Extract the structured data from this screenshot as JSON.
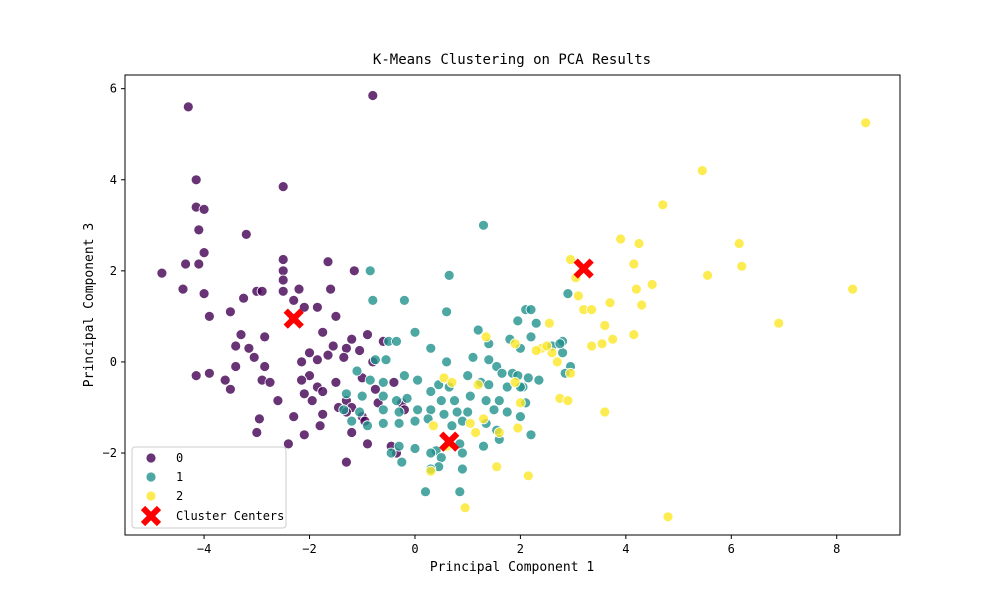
{
  "chart_data": {
    "type": "scatter",
    "title": "K-Means Clustering on PCA Results",
    "xlabel": "Principal Component 1",
    "ylabel": "Principal Component 3",
    "xlim": [
      -5.5,
      9.2
    ],
    "ylim": [
      -3.8,
      6.3
    ],
    "xticks": [
      -4,
      -2,
      0,
      2,
      4,
      6,
      8
    ],
    "yticks": [
      -2,
      0,
      2,
      4,
      6
    ],
    "grid": false,
    "legend_position": "lower-left",
    "series": [
      {
        "name": "0",
        "color": "#440154",
        "points": [
          [
            -4.3,
            5.6
          ],
          [
            -0.8,
            5.85
          ],
          [
            -4.15,
            4.0
          ],
          [
            -4.15,
            3.4
          ],
          [
            -4.0,
            3.35
          ],
          [
            -4.1,
            2.9
          ],
          [
            -3.2,
            2.8
          ],
          [
            -4.0,
            2.4
          ],
          [
            -4.35,
            2.15
          ],
          [
            -4.1,
            2.15
          ],
          [
            -4.8,
            1.95
          ],
          [
            -2.5,
            3.85
          ],
          [
            -2.5,
            2.25
          ],
          [
            -2.5,
            2.0
          ],
          [
            -1.65,
            2.2
          ],
          [
            -1.15,
            2.0
          ],
          [
            -2.5,
            1.8
          ],
          [
            -2.2,
            1.6
          ],
          [
            -1.6,
            1.6
          ],
          [
            -4.0,
            1.5
          ],
          [
            -4.4,
            1.6
          ],
          [
            -2.5,
            1.55
          ],
          [
            -3.0,
            1.55
          ],
          [
            -2.9,
            1.55
          ],
          [
            -3.25,
            1.4
          ],
          [
            -3.5,
            1.1
          ],
          [
            -2.3,
            1.35
          ],
          [
            -2.1,
            1.2
          ],
          [
            -1.85,
            1.2
          ],
          [
            -1.5,
            1.0
          ],
          [
            -3.9,
            1.0
          ],
          [
            -1.75,
            0.65
          ],
          [
            -1.2,
            0.5
          ],
          [
            -3.3,
            0.6
          ],
          [
            -2.85,
            0.55
          ],
          [
            -3.4,
            0.35
          ],
          [
            -3.15,
            0.3
          ],
          [
            -1.55,
            0.35
          ],
          [
            -1.3,
            0.3
          ],
          [
            -0.9,
            0.6
          ],
          [
            -0.6,
            0.45
          ],
          [
            -1.05,
            0.25
          ],
          [
            -2.0,
            0.2
          ],
          [
            -2.15,
            0.0
          ],
          [
            -1.85,
            0.05
          ],
          [
            -1.65,
            0.15
          ],
          [
            -1.35,
            0.1
          ],
          [
            -0.8,
            0.0
          ],
          [
            -3.4,
            -0.1
          ],
          [
            -3.9,
            -0.25
          ],
          [
            -4.15,
            -0.3
          ],
          [
            -2.85,
            -0.1
          ],
          [
            -3.05,
            0.1
          ],
          [
            -2.9,
            -0.4
          ],
          [
            -2.75,
            -0.45
          ],
          [
            -3.6,
            -0.4
          ],
          [
            -3.5,
            -0.6
          ],
          [
            -2.0,
            -0.3
          ],
          [
            -1.85,
            -0.55
          ],
          [
            -1.5,
            -0.45
          ],
          [
            -1.0,
            -0.35
          ],
          [
            -0.75,
            -0.6
          ],
          [
            -0.4,
            -0.45
          ],
          [
            -2.1,
            -0.7
          ],
          [
            -1.95,
            -0.85
          ],
          [
            -1.75,
            -0.65
          ],
          [
            -1.3,
            -0.85
          ],
          [
            -1.2,
            -1.0
          ],
          [
            -0.7,
            -0.9
          ],
          [
            -0.25,
            -0.9
          ],
          [
            -0.2,
            -1.05
          ],
          [
            -2.6,
            -0.85
          ],
          [
            -2.3,
            -1.2
          ],
          [
            -1.75,
            -1.15
          ],
          [
            -1.45,
            -1.0
          ],
          [
            -1.3,
            -1.1
          ],
          [
            -1.0,
            -1.2
          ],
          [
            -2.95,
            -1.25
          ],
          [
            -3.0,
            -1.55
          ],
          [
            -2.1,
            -1.6
          ],
          [
            -1.8,
            -1.4
          ],
          [
            -1.2,
            -1.55
          ],
          [
            -0.9,
            -1.8
          ],
          [
            -0.45,
            -1.85
          ],
          [
            -0.35,
            -2.0
          ],
          [
            -2.4,
            -1.8
          ],
          [
            -1.3,
            -2.2
          ],
          [
            -2.3,
            0.95
          ],
          [
            -0.95,
            -1.3
          ],
          [
            -2.15,
            -0.4
          ]
        ]
      },
      {
        "name": "1",
        "color": "#21918c",
        "points": [
          [
            1.3,
            3.0
          ],
          [
            -0.85,
            2.0
          ],
          [
            0.65,
            1.9
          ],
          [
            -0.8,
            1.35
          ],
          [
            -0.2,
            1.35
          ],
          [
            0.6,
            1.1
          ],
          [
            1.2,
            0.7
          ],
          [
            -0.5,
            0.45
          ],
          [
            -0.35,
            0.45
          ],
          [
            0.0,
            0.65
          ],
          [
            0.3,
            0.3
          ],
          [
            -0.75,
            0.05
          ],
          [
            -0.55,
            0.05
          ],
          [
            0.6,
            0.0
          ],
          [
            1.1,
            0.1
          ],
          [
            1.4,
            0.05
          ],
          [
            1.55,
            -0.1
          ],
          [
            -1.1,
            -0.2
          ],
          [
            -0.85,
            -0.4
          ],
          [
            -0.6,
            -0.45
          ],
          [
            -0.2,
            -0.3
          ],
          [
            0.05,
            -0.4
          ],
          [
            0.45,
            -0.5
          ],
          [
            0.65,
            -0.55
          ],
          [
            1.0,
            -0.3
          ],
          [
            1.25,
            -0.45
          ],
          [
            1.4,
            -0.5
          ],
          [
            1.65,
            -0.25
          ],
          [
            1.85,
            -0.25
          ],
          [
            2.05,
            -0.55
          ],
          [
            -1.3,
            -0.7
          ],
          [
            -1.0,
            -0.75
          ],
          [
            -0.6,
            -0.75
          ],
          [
            -0.35,
            -0.85
          ],
          [
            -0.15,
            -0.8
          ],
          [
            0.3,
            -0.65
          ],
          [
            0.5,
            -0.85
          ],
          [
            0.75,
            -0.85
          ],
          [
            1.05,
            -0.75
          ],
          [
            1.35,
            -0.85
          ],
          [
            1.6,
            -0.85
          ],
          [
            2.1,
            -0.9
          ],
          [
            -1.35,
            -1.05
          ],
          [
            -1.05,
            -1.1
          ],
          [
            -0.6,
            -1.05
          ],
          [
            -0.3,
            -1.1
          ],
          [
            0.05,
            -1.05
          ],
          [
            0.3,
            -1.05
          ],
          [
            0.55,
            -1.15
          ],
          [
            0.8,
            -1.1
          ],
          [
            1.0,
            -1.1
          ],
          [
            1.5,
            -1.05
          ],
          [
            1.75,
            -1.1
          ],
          [
            2.0,
            -1.2
          ],
          [
            -1.2,
            -1.3
          ],
          [
            -0.9,
            -1.4
          ],
          [
            -0.6,
            -1.35
          ],
          [
            -0.3,
            -1.35
          ],
          [
            0.0,
            -1.3
          ],
          [
            0.25,
            -1.25
          ],
          [
            0.7,
            -1.4
          ],
          [
            0.9,
            -1.3
          ],
          [
            1.35,
            -1.35
          ],
          [
            1.55,
            -1.5
          ],
          [
            2.2,
            -1.6
          ],
          [
            -0.3,
            -1.85
          ],
          [
            0.0,
            -1.9
          ],
          [
            0.4,
            -1.95
          ],
          [
            0.85,
            -1.8
          ],
          [
            1.3,
            -1.85
          ],
          [
            1.6,
            -1.7
          ],
          [
            -0.45,
            -2.0
          ],
          [
            0.3,
            -2.0
          ],
          [
            0.5,
            -2.1
          ],
          [
            0.9,
            -2.0
          ],
          [
            -0.25,
            -2.2
          ],
          [
            0.45,
            -2.3
          ],
          [
            0.3,
            -2.35
          ],
          [
            0.9,
            -2.35
          ],
          [
            0.2,
            -2.85
          ],
          [
            0.85,
            -2.85
          ],
          [
            1.4,
            0.4
          ],
          [
            1.8,
            0.5
          ],
          [
            2.0,
            0.3
          ],
          [
            2.1,
            1.15
          ],
          [
            2.2,
            1.15
          ],
          [
            1.95,
            0.9
          ],
          [
            2.3,
            0.85
          ],
          [
            2.2,
            0.55
          ],
          [
            2.6,
            0.35
          ],
          [
            2.8,
            0.2
          ],
          [
            2.8,
            0.45
          ],
          [
            2.9,
            1.5
          ],
          [
            2.75,
            0.4
          ],
          [
            2.95,
            -0.1
          ],
          [
            2.85,
            -0.25
          ],
          [
            2.35,
            -0.4
          ],
          [
            2.15,
            -0.35
          ],
          [
            1.95,
            -0.3
          ],
          [
            1.75,
            -0.55
          ],
          [
            2.0,
            -0.55
          ]
        ]
      },
      {
        "name": "2",
        "color": "#fde725",
        "points": [
          [
            8.55,
            5.25
          ],
          [
            5.45,
            4.2
          ],
          [
            4.7,
            3.45
          ],
          [
            6.15,
            2.6
          ],
          [
            6.2,
            2.1
          ],
          [
            5.55,
            1.9
          ],
          [
            3.9,
            2.7
          ],
          [
            4.25,
            2.6
          ],
          [
            4.15,
            2.15
          ],
          [
            4.5,
            1.7
          ],
          [
            4.2,
            1.6
          ],
          [
            4.3,
            1.25
          ],
          [
            2.95,
            2.25
          ],
          [
            3.05,
            1.85
          ],
          [
            3.1,
            1.45
          ],
          [
            3.2,
            1.15
          ],
          [
            3.35,
            1.15
          ],
          [
            3.6,
            0.8
          ],
          [
            3.7,
            1.3
          ],
          [
            8.3,
            1.6
          ],
          [
            6.9,
            0.85
          ],
          [
            3.35,
            0.35
          ],
          [
            3.55,
            0.4
          ],
          [
            3.75,
            0.5
          ],
          [
            4.15,
            0.6
          ],
          [
            2.55,
            0.85
          ],
          [
            2.4,
            0.3
          ],
          [
            2.6,
            0.2
          ],
          [
            1.9,
            0.4
          ],
          [
            1.35,
            0.55
          ],
          [
            2.7,
            0.0
          ],
          [
            2.95,
            -0.25
          ],
          [
            2.5,
            0.35
          ],
          [
            2.3,
            0.25
          ],
          [
            0.55,
            -0.35
          ],
          [
            1.2,
            -0.5
          ],
          [
            1.9,
            -0.45
          ],
          [
            2.0,
            -0.9
          ],
          [
            2.75,
            -0.8
          ],
          [
            2.9,
            -0.85
          ],
          [
            3.6,
            -1.1
          ],
          [
            1.3,
            -1.25
          ],
          [
            1.6,
            -1.55
          ],
          [
            1.15,
            -1.55
          ],
          [
            1.05,
            -1.35
          ],
          [
            1.95,
            -1.45
          ],
          [
            0.6,
            -1.85
          ],
          [
            0.3,
            -2.4
          ],
          [
            1.55,
            -2.3
          ],
          [
            2.15,
            -2.5
          ],
          [
            0.95,
            -3.2
          ],
          [
            4.8,
            -3.4
          ],
          [
            0.35,
            -1.4
          ],
          [
            0.7,
            -0.45
          ]
        ]
      }
    ],
    "centers": {
      "name": "Cluster Centers",
      "color": "#ff0000",
      "points": [
        [
          -2.3,
          0.95
        ],
        [
          0.65,
          -1.75
        ],
        [
          3.2,
          2.05
        ]
      ]
    }
  }
}
